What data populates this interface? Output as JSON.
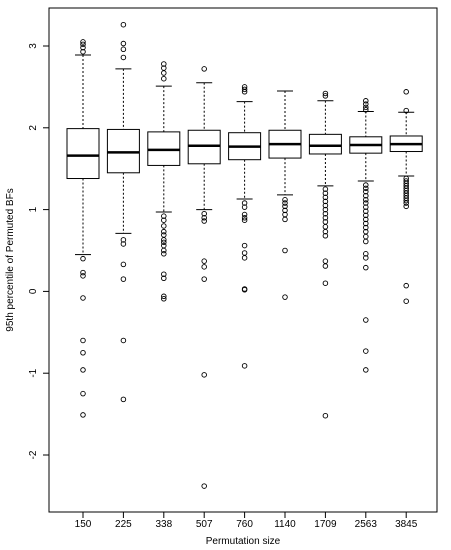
{
  "chart_data": {
    "type": "boxplot",
    "title": "",
    "xlabel": "Permutation size",
    "ylabel": "95th percentile of Permuted BFs",
    "categories": [
      "150",
      "225",
      "338",
      "507",
      "760",
      "1140",
      "1709",
      "2563",
      "3845"
    ],
    "yticks": [
      -2,
      -1,
      0,
      1,
      2,
      3
    ],
    "ylim": [
      -2.5,
      3.4
    ],
    "grid": false,
    "legend": "none",
    "boxes": [
      {
        "category": "150",
        "whisker_low": 0.45,
        "q1": 1.38,
        "median": 1.66,
        "q3": 1.99,
        "whisker_high": 2.89,
        "outliers": [
          3.05,
          3.02,
          2.98,
          2.93,
          0.4,
          0.23,
          0.19,
          -0.08,
          -0.6,
          -0.75,
          -0.96,
          -1.25,
          -1.51
        ]
      },
      {
        "category": "225",
        "whisker_low": 0.71,
        "q1": 1.45,
        "median": 1.7,
        "q3": 1.98,
        "whisker_high": 2.72,
        "outliers": [
          3.26,
          3.03,
          2.96,
          2.86,
          0.63,
          0.58,
          0.33,
          0.15,
          -0.6,
          -1.32
        ]
      },
      {
        "category": "338",
        "whisker_low": 0.97,
        "q1": 1.54,
        "median": 1.73,
        "q3": 1.95,
        "whisker_high": 2.51,
        "outliers": [
          2.78,
          2.73,
          2.67,
          2.6,
          0.92,
          0.87,
          0.8,
          0.73,
          0.69,
          0.63,
          0.6,
          0.56,
          0.5,
          0.46,
          0.21,
          0.16,
          -0.06,
          -0.09
        ]
      },
      {
        "category": "507",
        "whisker_low": 1.0,
        "q1": 1.56,
        "median": 1.78,
        "q3": 1.97,
        "whisker_high": 2.55,
        "outliers": [
          2.72,
          0.95,
          0.9,
          0.86,
          0.37,
          0.3,
          0.15,
          -1.02,
          -2.38
        ]
      },
      {
        "category": "760",
        "whisker_low": 1.13,
        "q1": 1.61,
        "median": 1.77,
        "q3": 1.94,
        "whisker_high": 2.32,
        "outliers": [
          2.5,
          2.47,
          2.44,
          1.08,
          1.03,
          0.94,
          0.9,
          0.87,
          0.56,
          0.47,
          0.41,
          0.03,
          0.02,
          -0.91
        ]
      },
      {
        "category": "1140",
        "whisker_low": 1.18,
        "q1": 1.63,
        "median": 1.8,
        "q3": 1.97,
        "whisker_high": 2.45,
        "outliers": [
          1.12,
          1.08,
          1.04,
          0.99,
          0.94,
          0.88,
          0.5,
          -0.07
        ]
      },
      {
        "category": "1709",
        "whisker_low": 1.29,
        "q1": 1.68,
        "median": 1.78,
        "q3": 1.92,
        "whisker_high": 2.33,
        "outliers": [
          2.42,
          2.39,
          1.25,
          1.2,
          1.15,
          1.1,
          1.05,
          1.0,
          0.95,
          0.9,
          0.85,
          0.79,
          0.73,
          0.68,
          0.37,
          0.31,
          0.1,
          -1.52
        ]
      },
      {
        "category": "2563",
        "whisker_low": 1.35,
        "q1": 1.69,
        "median": 1.79,
        "q3": 1.89,
        "whisker_high": 2.2,
        "outliers": [
          2.33,
          2.29,
          2.25,
          2.22,
          1.3,
          1.26,
          1.22,
          1.17,
          1.12,
          1.08,
          1.03,
          0.98,
          0.93,
          0.88,
          0.83,
          0.78,
          0.73,
          0.67,
          0.61,
          0.46,
          0.41,
          0.29,
          -0.35,
          -0.73,
          -0.96
        ]
      },
      {
        "category": "3845",
        "whisker_low": 1.41,
        "q1": 1.71,
        "median": 1.8,
        "q3": 1.9,
        "whisker_high": 2.19,
        "outliers": [
          2.44,
          2.21,
          1.38,
          1.35,
          1.32,
          1.29,
          1.26,
          1.23,
          1.2,
          1.17,
          1.14,
          1.11,
          1.08,
          1.04,
          0.07,
          -0.12
        ]
      }
    ]
  }
}
